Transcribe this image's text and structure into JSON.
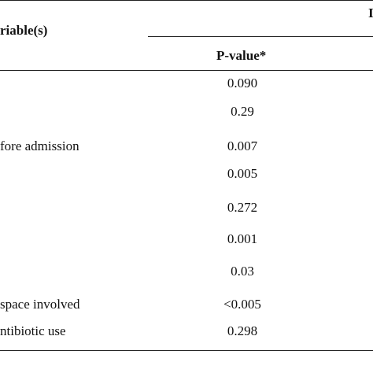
{
  "table": {
    "header": {
      "variable_label": "riable(s)",
      "right_group_fragment": "I",
      "pvalue_label": "P-value*"
    },
    "rows": [
      {
        "variable": "",
        "p_value": "0.090"
      },
      {
        "variable": "",
        "p_value": "0.29"
      },
      {
        "variable": "fore admission",
        "p_value": "0.007"
      },
      {
        "variable": "",
        "p_value": "0.005"
      },
      {
        "variable": "",
        "p_value": "0.272"
      },
      {
        "variable": "",
        "p_value": "0.001"
      },
      {
        "variable": "",
        "p_value": "0.03"
      },
      {
        "variable": "space involved",
        "p_value": "<0.005"
      },
      {
        "variable": "ntibiotic use",
        "p_value": "0.298"
      }
    ]
  }
}
